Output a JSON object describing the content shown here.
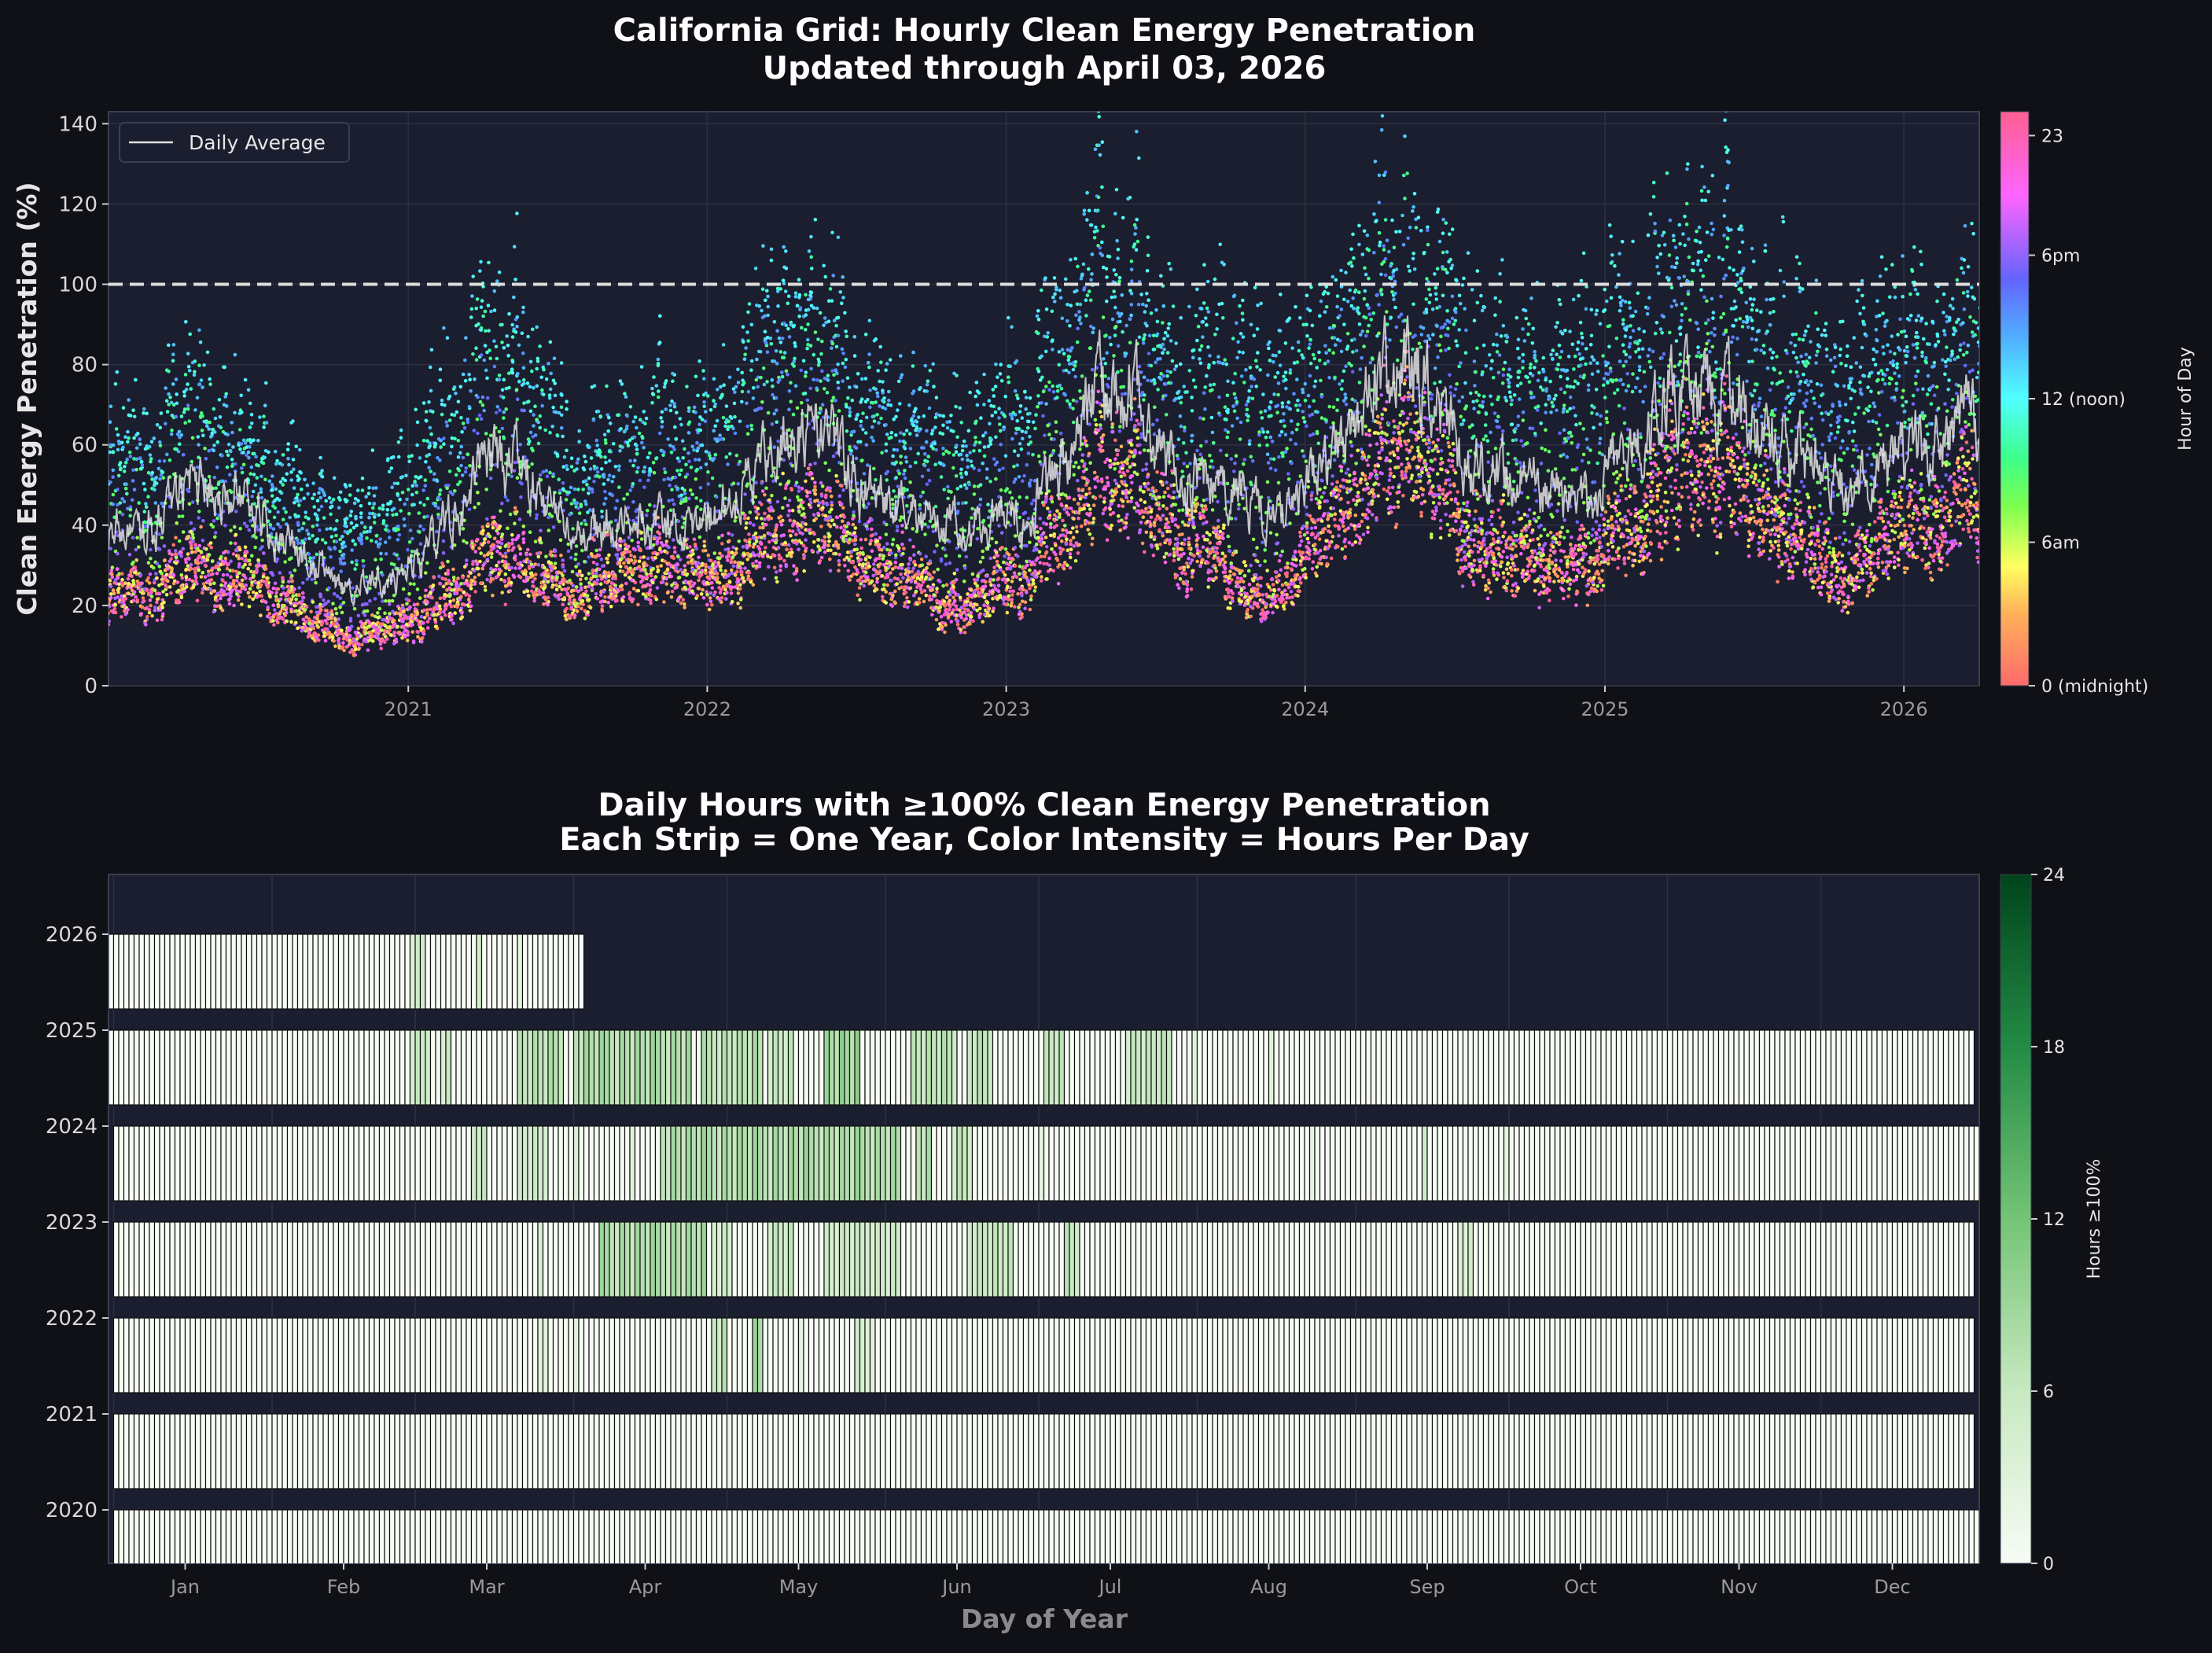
{
  "chart_data": [
    {
      "type": "scatter",
      "title": "California Grid: Hourly Clean Energy Penetration",
      "subtitle": "Updated through April 03, 2026",
      "ylabel": "Clean Energy Penetration (%)",
      "xlabel": "",
      "x_range": [
        "2020-01-01",
        "2026-04-03"
      ],
      "ylim": [
        0,
        143
      ],
      "yticks": [
        0,
        20,
        40,
        60,
        80,
        100,
        120,
        140
      ],
      "xticks": [
        "2021",
        "2022",
        "2023",
        "2024",
        "2025",
        "2026"
      ],
      "grid": true,
      "reference_line": {
        "y": 100,
        "style": "dashed",
        "color": "#dddddd"
      },
      "legend": {
        "placement": "top-left",
        "entries": [
          "Daily Average"
        ]
      },
      "colorbar": {
        "label": "Hour of Day",
        "range": [
          0,
          24
        ],
        "ticks": [
          {
            "v": 0,
            "label": "0 (midnight)"
          },
          {
            "v": 6,
            "label": "6am"
          },
          {
            "v": 12,
            "label": "12 (noon)"
          },
          {
            "v": 18,
            "label": "6pm"
          },
          {
            "v": 23,
            "label": "23"
          }
        ],
        "stops": [
          [
            0,
            "#ff6b6b"
          ],
          [
            3,
            "#ffb05a"
          ],
          [
            5,
            "#ffff60"
          ],
          [
            7.5,
            "#7dff4f"
          ],
          [
            9.5,
            "#3dff8a"
          ],
          [
            12,
            "#50ffff"
          ],
          [
            14.5,
            "#50b0ff"
          ],
          [
            17,
            "#6464ff"
          ],
          [
            20.5,
            "#ff64ff"
          ],
          [
            24,
            "#ff6090"
          ]
        ]
      },
      "monthly": {
        "start": "2020-01",
        "daily_average": [
          35,
          40,
          45,
          52,
          52,
          48,
          40,
          33,
          30,
          25,
          25,
          27,
          32,
          40,
          48,
          55,
          55,
          45,
          40,
          38,
          40,
          40,
          40,
          38,
          45,
          52,
          58,
          62,
          65,
          55,
          48,
          45,
          42,
          40,
          40,
          40,
          42,
          48,
          58,
          72,
          75,
          72,
          58,
          52,
          50,
          48,
          42,
          45,
          52,
          60,
          70,
          78,
          80,
          70,
          55,
          52,
          52,
          50,
          47,
          48,
          55,
          62,
          70,
          75,
          75,
          70,
          62,
          58,
          55,
          50,
          48,
          55,
          58,
          62,
          68
        ],
        "hourly_low": [
          18,
          20,
          22,
          25,
          26,
          24,
          20,
          16,
          14,
          10,
          11,
          13,
          14,
          18,
          22,
          25,
          26,
          22,
          20,
          22,
          24,
          24,
          24,
          22,
          24,
          28,
          32,
          34,
          36,
          30,
          26,
          24,
          22,
          16,
          18,
          20,
          22,
          28,
          34,
          42,
          45,
          44,
          34,
          30,
          28,
          20,
          18,
          22,
          30,
          36,
          42,
          50,
          52,
          45,
          30,
          28,
          28,
          25,
          24,
          26,
          32,
          36,
          42,
          45,
          48,
          44,
          36,
          32,
          28,
          22,
          25,
          30,
          32,
          35,
          40
        ],
        "hourly_high": [
          70,
          75,
          85,
          93,
          90,
          80,
          70,
          60,
          58,
          55,
          55,
          62,
          70,
          85,
          100,
          105,
          100,
          85,
          70,
          70,
          75,
          80,
          78,
          75,
          90,
          105,
          112,
          120,
          112,
          100,
          90,
          85,
          80,
          82,
          85,
          80,
          90,
          100,
          115,
          130,
          128,
          125,
          105,
          100,
          102,
          105,
          95,
          100,
          100,
          110,
          125,
          135,
          130,
          120,
          110,
          105,
          105,
          100,
          100,
          102,
          105,
          115,
          125,
          130,
          128,
          120,
          110,
          105,
          100,
          95,
          95,
          105,
          100,
          108,
          112
        ]
      },
      "series_colors": {
        "daily_average": "#e0e0e0"
      }
    },
    {
      "type": "heatmap",
      "title": "Daily Hours with ≥100% Clean Energy Penetration",
      "subtitle": "Each Strip = One Year, Color Intensity = Hours Per Day",
      "xlabel": "Day of Year",
      "ylabel": "",
      "years": [
        2020,
        2021,
        2022,
        2023,
        2024,
        2025,
        2026
      ],
      "last_day_2026": 93,
      "month_ticks": [
        {
          "day": 15,
          "label": "Jan"
        },
        {
          "day": 46,
          "label": "Feb"
        },
        {
          "day": 74,
          "label": "Mar"
        },
        {
          "day": 105,
          "label": "Apr"
        },
        {
          "day": 135,
          "label": "May"
        },
        {
          "day": 166,
          "label": "Jun"
        },
        {
          "day": 196,
          "label": "Jul"
        },
        {
          "day": 227,
          "label": "Aug"
        },
        {
          "day": 258,
          "label": "Sep"
        },
        {
          "day": 288,
          "label": "Oct"
        },
        {
          "day": 319,
          "label": "Nov"
        },
        {
          "day": 349,
          "label": "Dec"
        }
      ],
      "colorbar": {
        "label": "Hours ≥100%",
        "range": [
          0,
          24
        ],
        "ticks": [
          0,
          6,
          12,
          18,
          24
        ],
        "stops": [
          [
            0,
            "#f7fcf5"
          ],
          [
            6,
            "#c7e9c0"
          ],
          [
            12,
            "#74c476"
          ],
          [
            18,
            "#238b45"
          ],
          [
            24,
            "#00441b"
          ]
        ]
      },
      "hours_ge_100_ranges": {
        "2020": [],
        "2021": [
          [
            122,
            122,
            2
          ]
        ],
        "2022": [
          [
            85,
            86,
            3
          ],
          [
            92,
            92,
            3
          ],
          [
            119,
            121,
            7
          ],
          [
            127,
            128,
            8
          ],
          [
            136,
            136,
            3
          ],
          [
            147,
            150,
            4
          ]
        ],
        "2023": [
          [
            85,
            85,
            4
          ],
          [
            97,
            117,
            8
          ],
          [
            119,
            122,
            5
          ],
          [
            130,
            134,
            6
          ],
          [
            141,
            155,
            5
          ],
          [
            169,
            177,
            6
          ],
          [
            188,
            190,
            7
          ],
          [
            265,
            267,
            4
          ]
        ],
        "2024": [
          [
            72,
            74,
            6
          ],
          [
            81,
            86,
            5
          ],
          [
            92,
            92,
            4
          ],
          [
            103,
            103,
            4
          ],
          [
            109,
            155,
            8
          ],
          [
            159,
            161,
            8
          ],
          [
            166,
            169,
            6
          ],
          [
            183,
            183,
            3
          ],
          [
            210,
            210,
            3
          ],
          [
            236,
            236,
            3
          ],
          [
            258,
            258,
            5
          ],
          [
            274,
            274,
            2
          ]
        ],
        "2025": [
          [
            60,
            63,
            6
          ],
          [
            66,
            67,
            5
          ],
          [
            81,
            89,
            7
          ],
          [
            92,
            100,
            8
          ],
          [
            101,
            114,
            8
          ],
          [
            117,
            128,
            7
          ],
          [
            130,
            134,
            6
          ],
          [
            141,
            147,
            9
          ],
          [
            158,
            166,
            7
          ],
          [
            169,
            173,
            7
          ],
          [
            184,
            187,
            6
          ],
          [
            200,
            208,
            6
          ],
          [
            213,
            213,
            4
          ],
          [
            228,
            228,
            3
          ]
        ],
        "2026": [
          [
            60,
            62,
            5
          ],
          [
            73,
            73,
            6
          ],
          [
            81,
            81,
            2
          ]
        ]
      }
    }
  ]
}
